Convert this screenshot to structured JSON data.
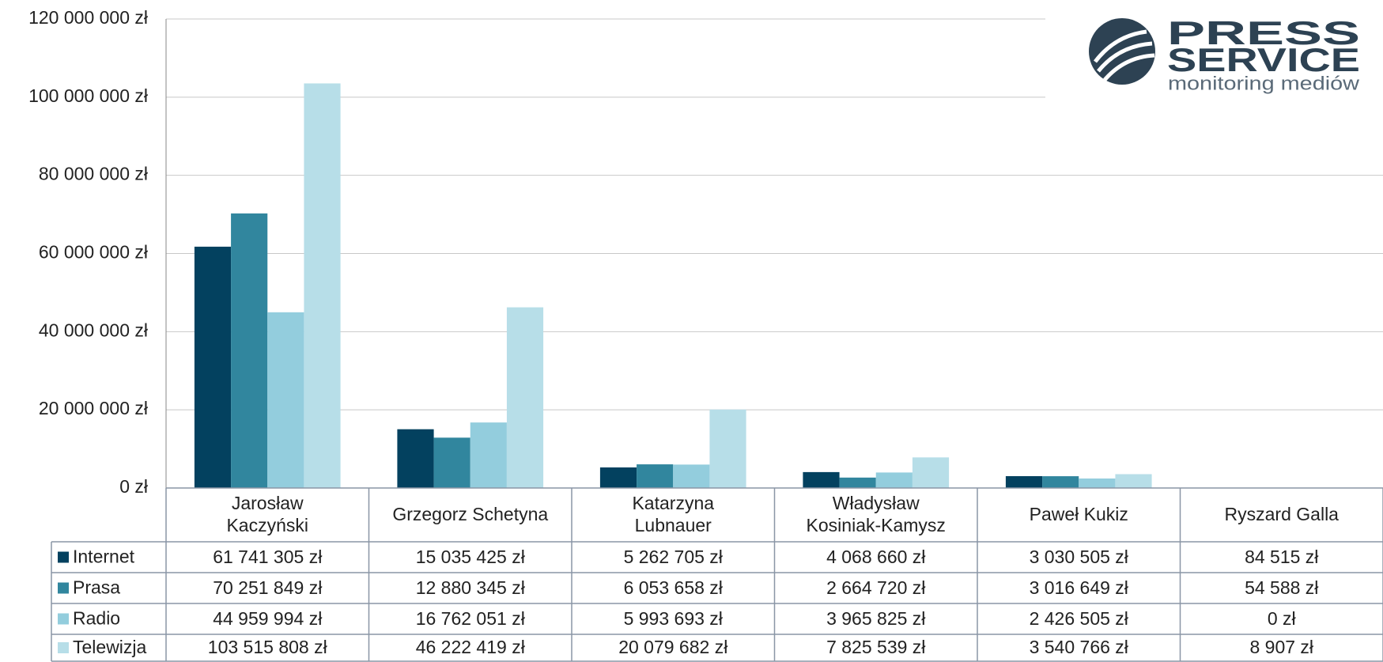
{
  "chart_data": {
    "type": "bar",
    "categories": [
      "Jarosław Kaczyński",
      "Grzegorz Schetyna",
      "Katarzyna Lubnauer",
      "Władysław Kosiniak-Kamysz",
      "Paweł Kukiz",
      "Ryszard Galla"
    ],
    "series": [
      {
        "name": "Internet",
        "color": "#03415f",
        "values": [
          61741305,
          15035425,
          5262705,
          4068660,
          3030505,
          84515
        ],
        "value_labels": [
          "61 741 305 zł",
          "15 035 425 zł",
          "5 262 705 zł",
          "4 068 660 zł",
          "3 030 505 zł",
          "84 515 zł"
        ]
      },
      {
        "name": "Prasa",
        "color": "#31869e",
        "values": [
          70251849,
          12880345,
          6053658,
          2664720,
          3016649,
          54588
        ],
        "value_labels": [
          "70 251 849 zł",
          "12 880 345 zł",
          "6 053 658 zł",
          "2 664 720 zł",
          "3 016 649 zł",
          "54 588 zł"
        ]
      },
      {
        "name": "Radio",
        "color": "#93cddd",
        "values": [
          44959994,
          16762051,
          5993693,
          3965825,
          2426505,
          0
        ],
        "value_labels": [
          "44 959 994 zł",
          "16 762 051 zł",
          "5 993 693 zł",
          "3 965 825 zł",
          "2 426 505 zł",
          "0 zł"
        ]
      },
      {
        "name": "Telewizja",
        "color": "#b7dee8",
        "values": [
          103515808,
          46222419,
          20079682,
          7825539,
          3540766,
          8907
        ],
        "value_labels": [
          "103 515 808 zł",
          "46 222 419 zł",
          "20 079 682 zł",
          "7 825 539 zł",
          "3 540 766 zł",
          "8 907 zł"
        ]
      }
    ],
    "ylim": [
      0,
      120000000
    ],
    "yticks": [
      {
        "value": 0,
        "label": "0 zł"
      },
      {
        "value": 20000000,
        "label": "20 000 000 zł"
      },
      {
        "value": 40000000,
        "label": "40 000 000 zł"
      },
      {
        "value": 60000000,
        "label": "60 000 000 zł"
      },
      {
        "value": 80000000,
        "label": "80 000 000 zł"
      },
      {
        "value": 100000000,
        "label": "100 000 000 zł"
      },
      {
        "value": 120000000,
        "label": "120 000 000 zł"
      }
    ],
    "grid": true,
    "logo": {
      "line1": "PRESS",
      "line2": "SERVICE",
      "line3": "monitoring mediów"
    }
  }
}
